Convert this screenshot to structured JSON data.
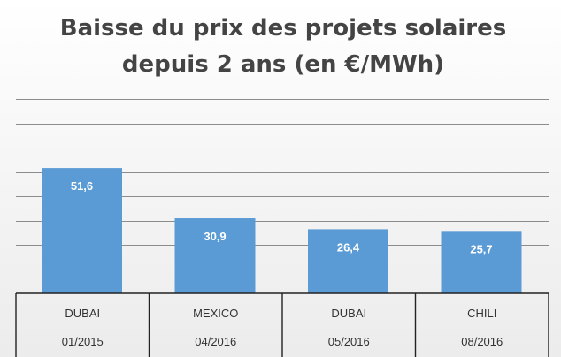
{
  "chart_data": {
    "type": "bar",
    "title": "Baisse du prix des projets solaires depuis 2 ans (en €/MWh)",
    "title_lines": [
      "Baisse du prix des projets solaires",
      "depuis 2 ans (en €/MWh)"
    ],
    "categories": [
      {
        "name": "DUBAI",
        "date": "01/2015"
      },
      {
        "name": "MEXICO",
        "date": "04/2016"
      },
      {
        "name": "DUBAI",
        "date": "05/2016"
      },
      {
        "name": "CHILI",
        "date": "08/2016"
      }
    ],
    "values": [
      51.6,
      30.9,
      26.4,
      25.7
    ],
    "value_labels": [
      "51,6",
      "30,9",
      "26,4",
      "25,7"
    ],
    "ylim": [
      0,
      80
    ],
    "grid_step": 10,
    "grid": true,
    "colors": {
      "bar": "#5b9bd5",
      "title": "#444444"
    }
  }
}
